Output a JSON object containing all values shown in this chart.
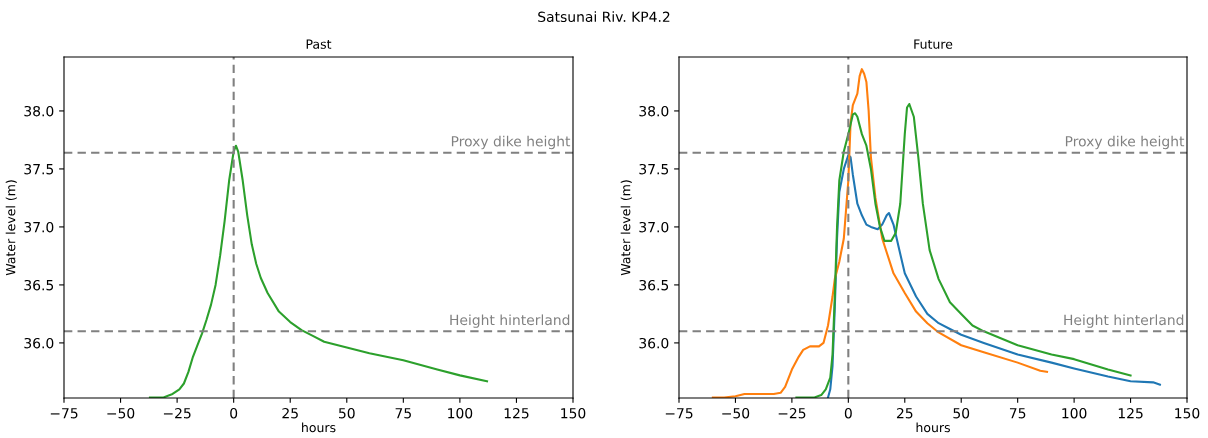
{
  "chart_data": [
    {
      "type": "line",
      "title": "Past",
      "xlabel": "hours",
      "ylabel": "Water level (m)",
      "annotations": [
        "Satsunai Riv. KP4.2"
      ],
      "xlim": [
        -75,
        150
      ],
      "xticks": [
        {
          "value": -75,
          "label": "−75"
        },
        {
          "value": -50,
          "label": "−50"
        },
        {
          "value": -25,
          "label": "−25"
        },
        0,
        25,
        50,
        75,
        100,
        125,
        150
      ],
      "ylim": [
        35.525,
        38.465
      ],
      "yticks": [
        {
          "value": 36,
          "label": "36.0"
        },
        {
          "value": 36.5,
          "label": "36.5"
        },
        {
          "value": 37,
          "label": "37.0"
        },
        {
          "value": 37.5,
          "label": "37.5"
        },
        {
          "value": 38,
          "label": "38.0"
        }
      ],
      "grid": false,
      "ref_lines": [
        {
          "axis": "y",
          "value": 37.64,
          "label": "Proxy dike height",
          "color": "#808080",
          "line_style": "dashed"
        },
        {
          "axis": "y",
          "value": 36.1,
          "label": "Height hinterland",
          "color": "#808080",
          "line_style": "dashed"
        },
        {
          "axis": "x",
          "value": 0,
          "label": null,
          "color": "#808080",
          "line_style": "dashed"
        }
      ],
      "series": [
        {
          "color": "#2ca02c",
          "x": [
            -37,
            -35,
            -31,
            -27,
            -24,
            -22,
            -20,
            -18,
            -16,
            -14,
            -12,
            -10,
            -8,
            -6,
            -4,
            -2,
            0,
            1,
            2,
            4,
            6,
            8,
            10,
            12,
            15,
            20,
            25,
            30,
            35,
            40,
            50,
            60,
            75,
            90,
            100,
            112
          ],
          "values": [
            35.53,
            35.53,
            35.53,
            35.56,
            35.6,
            35.65,
            35.75,
            35.88,
            35.98,
            36.08,
            36.2,
            36.33,
            36.5,
            36.75,
            37.05,
            37.4,
            37.65,
            37.7,
            37.65,
            37.4,
            37.1,
            36.85,
            36.68,
            36.56,
            36.43,
            36.27,
            36.18,
            36.11,
            36.06,
            36.01,
            35.96,
            35.91,
            35.85,
            35.77,
            35.72,
            35.67
          ]
        }
      ]
    },
    {
      "type": "line",
      "title": "Future",
      "xlabel": "hours",
      "ylabel": "Water level (m)",
      "xlim": [
        -75,
        150
      ],
      "xticks": [
        {
          "value": -75,
          "label": "−75"
        },
        {
          "value": -50,
          "label": "−50"
        },
        {
          "value": -25,
          "label": "−25"
        },
        0,
        25,
        50,
        75,
        100,
        125,
        150
      ],
      "ylim": [
        35.525,
        38.465
      ],
      "yticks": [
        {
          "value": 36,
          "label": "36.0"
        },
        {
          "value": 36.5,
          "label": "36.5"
        },
        {
          "value": 37,
          "label": "37.0"
        },
        {
          "value": 37.5,
          "label": "37.5"
        },
        {
          "value": 38,
          "label": "38.0"
        }
      ],
      "grid": false,
      "ref_lines": [
        {
          "axis": "y",
          "value": 37.64,
          "label": "Proxy dike height",
          "color": "#808080",
          "line_style": "dashed"
        },
        {
          "axis": "y",
          "value": 36.1,
          "label": "Height hinterland",
          "color": "#808080",
          "line_style": "dashed"
        },
        {
          "axis": "x",
          "value": 0,
          "label": null,
          "color": "#808080",
          "line_style": "dashed"
        }
      ],
      "series": [
        {
          "color": "#1f77b4",
          "x": [
            -9,
            -8,
            -7,
            -6,
            -5,
            -4,
            -2,
            0,
            1,
            2,
            4,
            6,
            8,
            10,
            13,
            15,
            17,
            18,
            20,
            22,
            25,
            30,
            35,
            40,
            45,
            50,
            60,
            75,
            90,
            100,
            115,
            125,
            135,
            138
          ],
          "values": [
            35.53,
            35.6,
            35.8,
            36.3,
            36.9,
            37.3,
            37.5,
            37.62,
            37.6,
            37.45,
            37.2,
            37.1,
            37.02,
            37.0,
            36.98,
            37.02,
            37.1,
            37.12,
            37.02,
            36.85,
            36.6,
            36.4,
            36.25,
            36.17,
            36.12,
            36.07,
            36.0,
            35.9,
            35.83,
            35.78,
            35.71,
            35.67,
            35.66,
            35.64
          ]
        },
        {
          "color": "#ff7f0e",
          "x": [
            -60,
            -55,
            -50,
            -46,
            -40,
            -33,
            -30,
            -28,
            -25,
            -22,
            -20,
            -17,
            -13,
            -11,
            -9,
            -7,
            -6,
            -4,
            -2,
            0,
            1,
            2,
            4,
            5,
            6,
            7,
            8,
            9,
            10,
            12,
            15,
            20,
            25,
            30,
            35,
            40,
            50,
            60,
            75,
            85,
            88
          ],
          "values": [
            35.53,
            35.53,
            35.54,
            35.56,
            35.56,
            35.56,
            35.57,
            35.62,
            35.77,
            35.88,
            35.94,
            35.97,
            35.97,
            36.0,
            36.15,
            36.4,
            36.55,
            36.7,
            36.9,
            37.4,
            37.9,
            38.05,
            38.15,
            38.3,
            38.36,
            38.32,
            38.25,
            38.0,
            37.6,
            37.25,
            36.9,
            36.6,
            36.43,
            36.27,
            36.17,
            36.09,
            35.98,
            35.92,
            35.83,
            35.76,
            35.75
          ]
        },
        {
          "color": "#2ca02c",
          "x": [
            -23,
            -15,
            -12,
            -10,
            -8,
            -7,
            -6,
            -5,
            -4,
            -2,
            0,
            2,
            3,
            4,
            6,
            8,
            10,
            12,
            14,
            16,
            19,
            21,
            23,
            25,
            26,
            27,
            29,
            31,
            33,
            36,
            40,
            45,
            50,
            55,
            60,
            75,
            90,
            100,
            115,
            125
          ],
          "values": [
            35.53,
            35.53,
            35.55,
            35.6,
            35.7,
            35.9,
            36.4,
            37.0,
            37.4,
            37.65,
            37.8,
            37.97,
            37.98,
            37.95,
            37.8,
            37.7,
            37.5,
            37.2,
            37.0,
            36.88,
            36.88,
            36.95,
            37.2,
            37.8,
            38.03,
            38.06,
            37.95,
            37.6,
            37.2,
            36.8,
            36.55,
            36.35,
            36.25,
            36.15,
            36.1,
            35.98,
            35.9,
            35.86,
            35.77,
            35.72
          ]
        }
      ]
    }
  ]
}
